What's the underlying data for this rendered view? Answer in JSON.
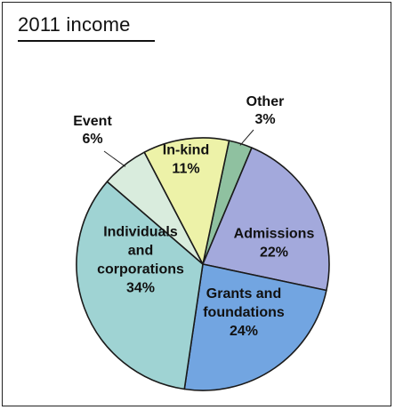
{
  "title": "2011 income",
  "chart_data": {
    "type": "pie",
    "title": "2011 income",
    "slices": [
      {
        "name": "Other",
        "value": 3,
        "label": "3%",
        "color": "#8fc1a0"
      },
      {
        "name": "Admissions",
        "value": 22,
        "label": "22%",
        "color": "#a3a9dc"
      },
      {
        "name": "Grants and foundations",
        "value": 24,
        "label": "24%",
        "color": "#72a5e1"
      },
      {
        "name": "Individuals and corporations",
        "value": 34,
        "label": "34%",
        "color": "#9fd3d3"
      },
      {
        "name": "Event",
        "value": 6,
        "label": "6%",
        "color": "#d9ecdd"
      },
      {
        "name": "In-kind",
        "value": 11,
        "label": "11%",
        "color": "#edf2a8"
      }
    ],
    "start_angle_deg": 12
  }
}
